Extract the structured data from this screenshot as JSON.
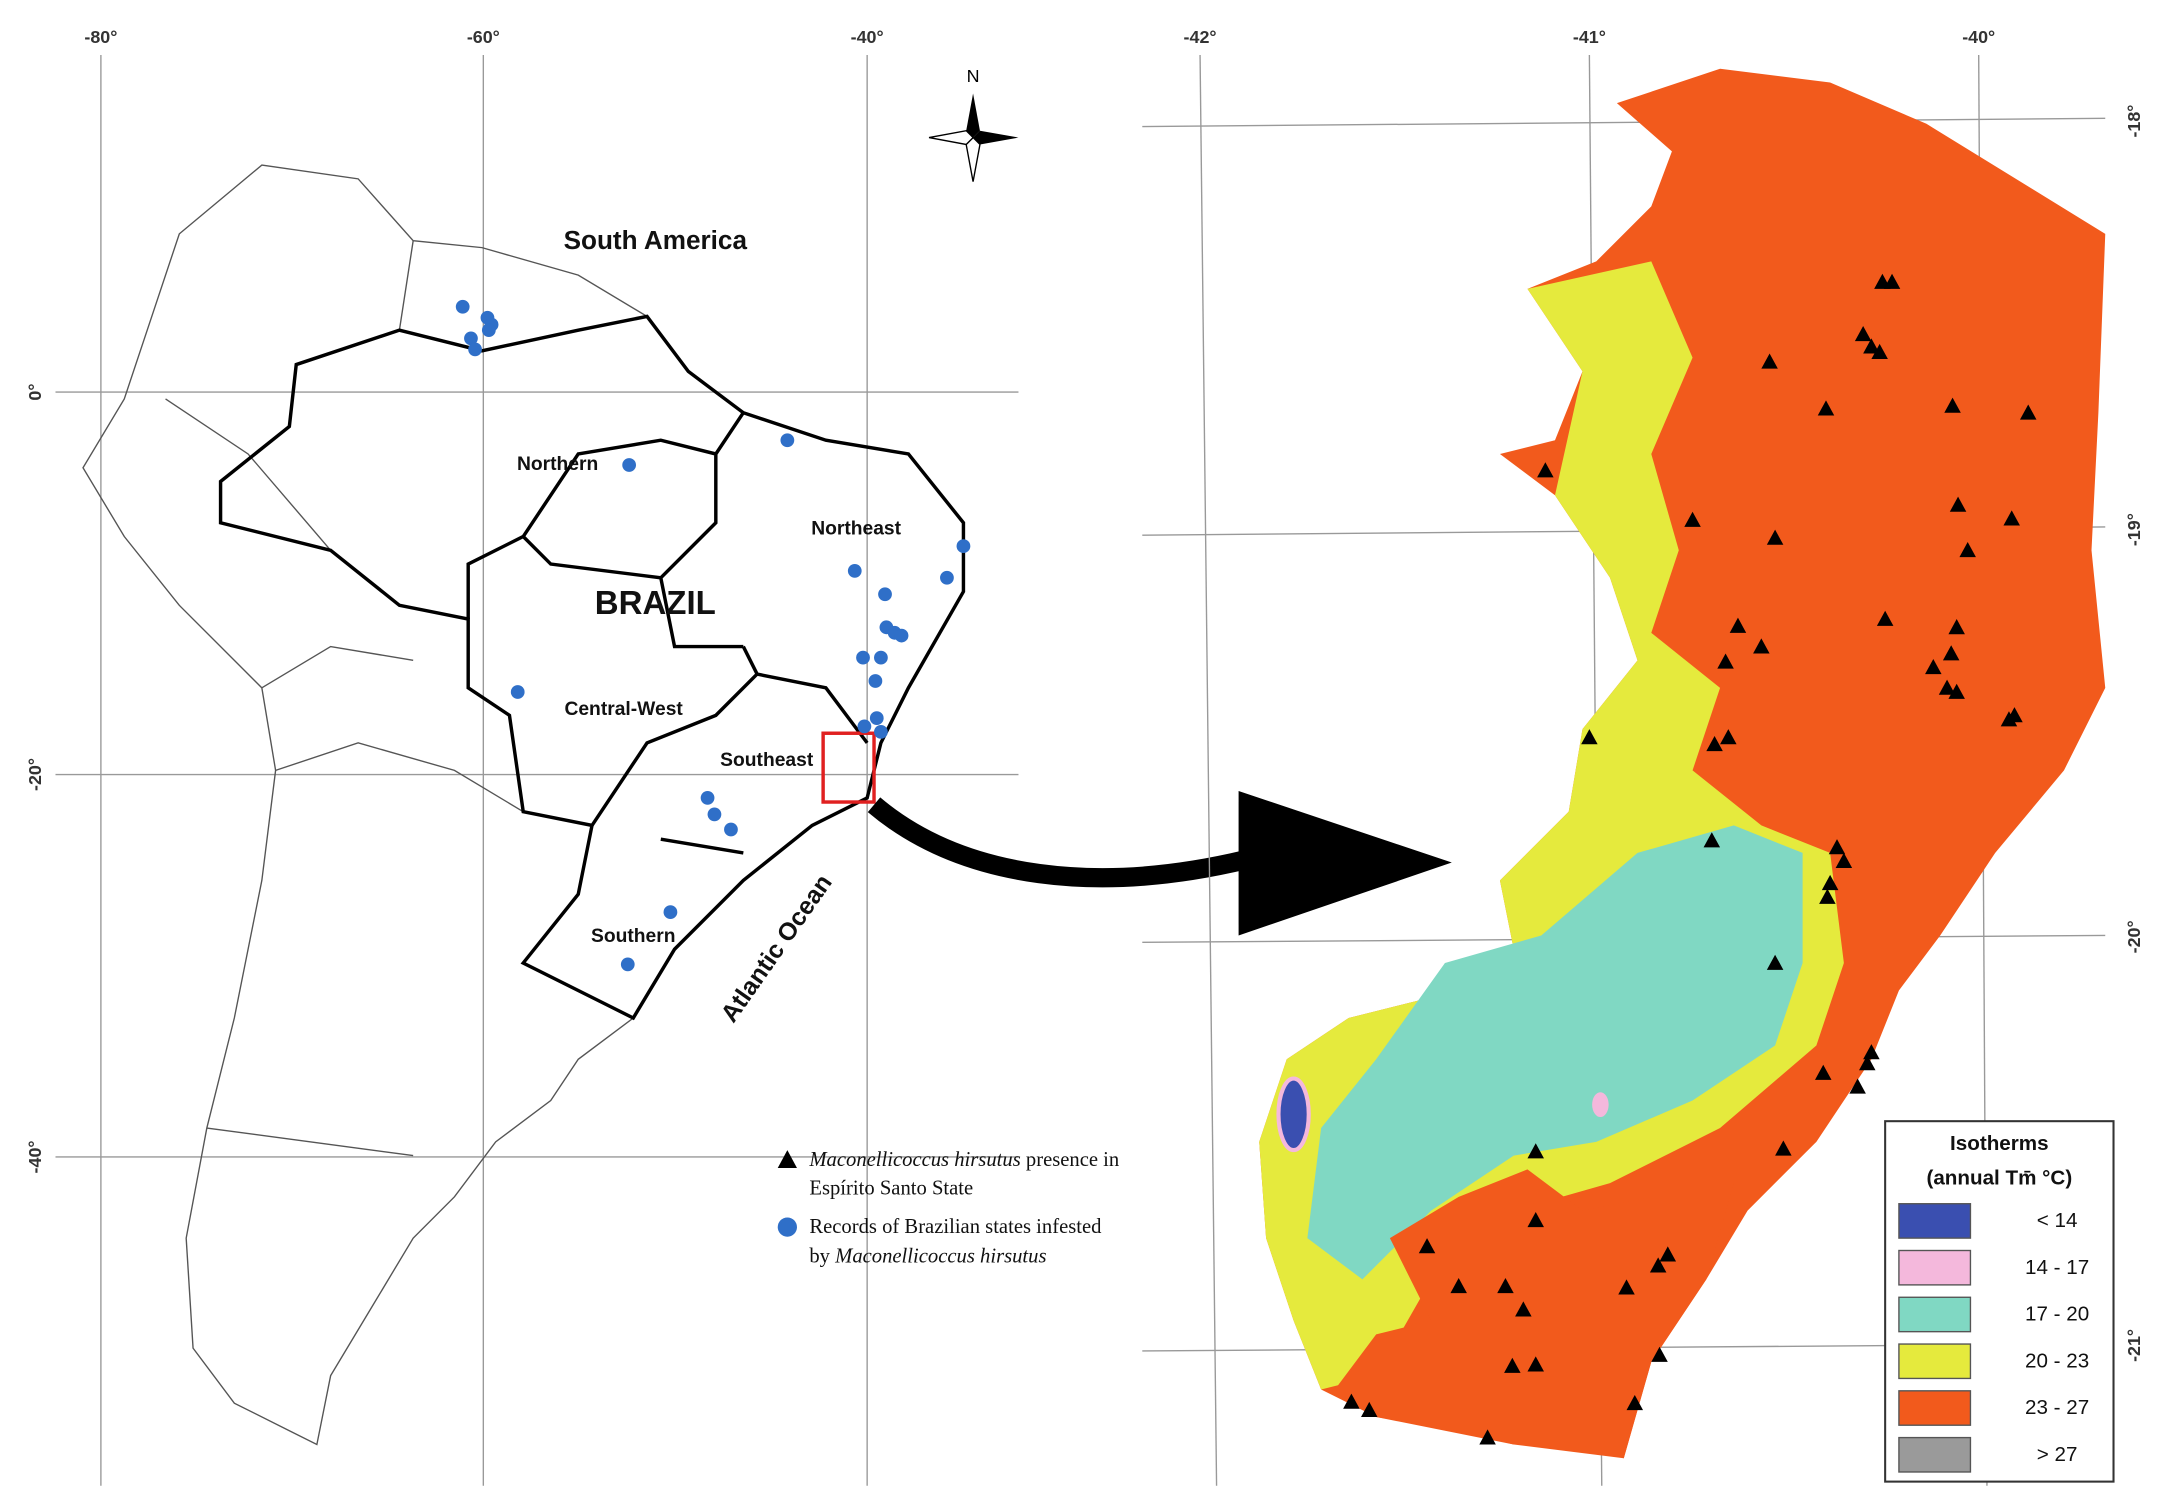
{
  "left_map": {
    "lon_labels": [
      "-80°",
      "-60°",
      "-40°"
    ],
    "lat_labels": [
      "0°",
      "-20°",
      "-40°"
    ],
    "continent": "South America",
    "country": "BRAZIL",
    "regions": [
      "Northern",
      "Northeast",
      "Central-West",
      "Southeast",
      "Southern"
    ],
    "ocean": "Atlantic Ocean",
    "north": "N",
    "legend": {
      "presence": {
        "species": "Maconellicoccus hirsutus",
        "text": "presence in",
        "line2": "Espírito Santo State"
      },
      "records": {
        "text": "Records of Brazilian states infested",
        "prefix": "by",
        "species": "Maconellicoccus hirsutus"
      }
    }
  },
  "right_map": {
    "lon_labels": [
      "-42°",
      "-41°",
      "-40°"
    ],
    "lat_labels": [
      "-18°",
      "-19°",
      "-20°",
      "-21°"
    ],
    "legend": {
      "title": "Isotherms",
      "subtitle": "(annual Tm̄ °C)",
      "classes": [
        {
          "label": "< 14",
          "color": "#3a4fb0"
        },
        {
          "label": "14 - 17",
          "color": "#f4b8dc"
        },
        {
          "label": "17 - 20",
          "color": "#80d8c3"
        },
        {
          "label": "20 - 23",
          "color": "#e5ea3d"
        },
        {
          "label": "23 - 27",
          "color": "#f25a1c"
        },
        {
          "label": "> 27",
          "color": "#9a9a9a"
        }
      ]
    }
  }
}
